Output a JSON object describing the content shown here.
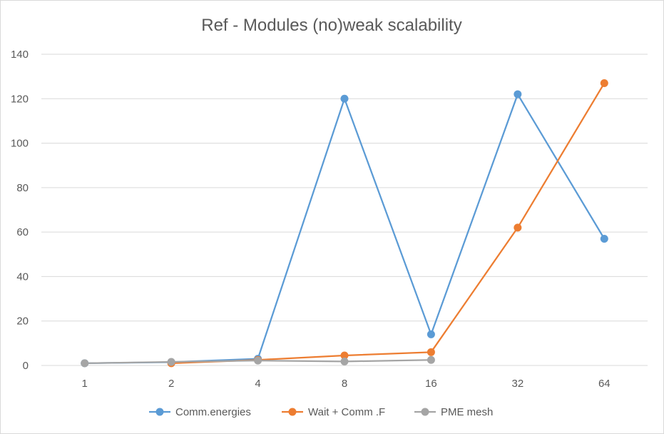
{
  "chart_data": {
    "type": "line",
    "title": "Ref - Modules (no)weak scalability",
    "categories": [
      "1",
      "2",
      "4",
      "8",
      "16",
      "32",
      "64"
    ],
    "ylim": [
      0,
      140
    ],
    "yticks": [
      0,
      20,
      40,
      60,
      80,
      100,
      120,
      140
    ],
    "grid": true,
    "legend": "bottom",
    "series": [
      {
        "name": "Comm.energies",
        "color": "#5b9bd5",
        "values": [
          1,
          1.5,
          3,
          120,
          14,
          122,
          57
        ]
      },
      {
        "name": "Wait + Comm .F",
        "color": "#ed7d31",
        "values": [
          null,
          1,
          2.5,
          4.5,
          6,
          62,
          127
        ]
      },
      {
        "name": "PME mesh",
        "color": "#a5a5a5",
        "values": [
          1,
          1.6,
          2.2,
          1.8,
          2.5,
          null,
          null
        ]
      }
    ]
  }
}
